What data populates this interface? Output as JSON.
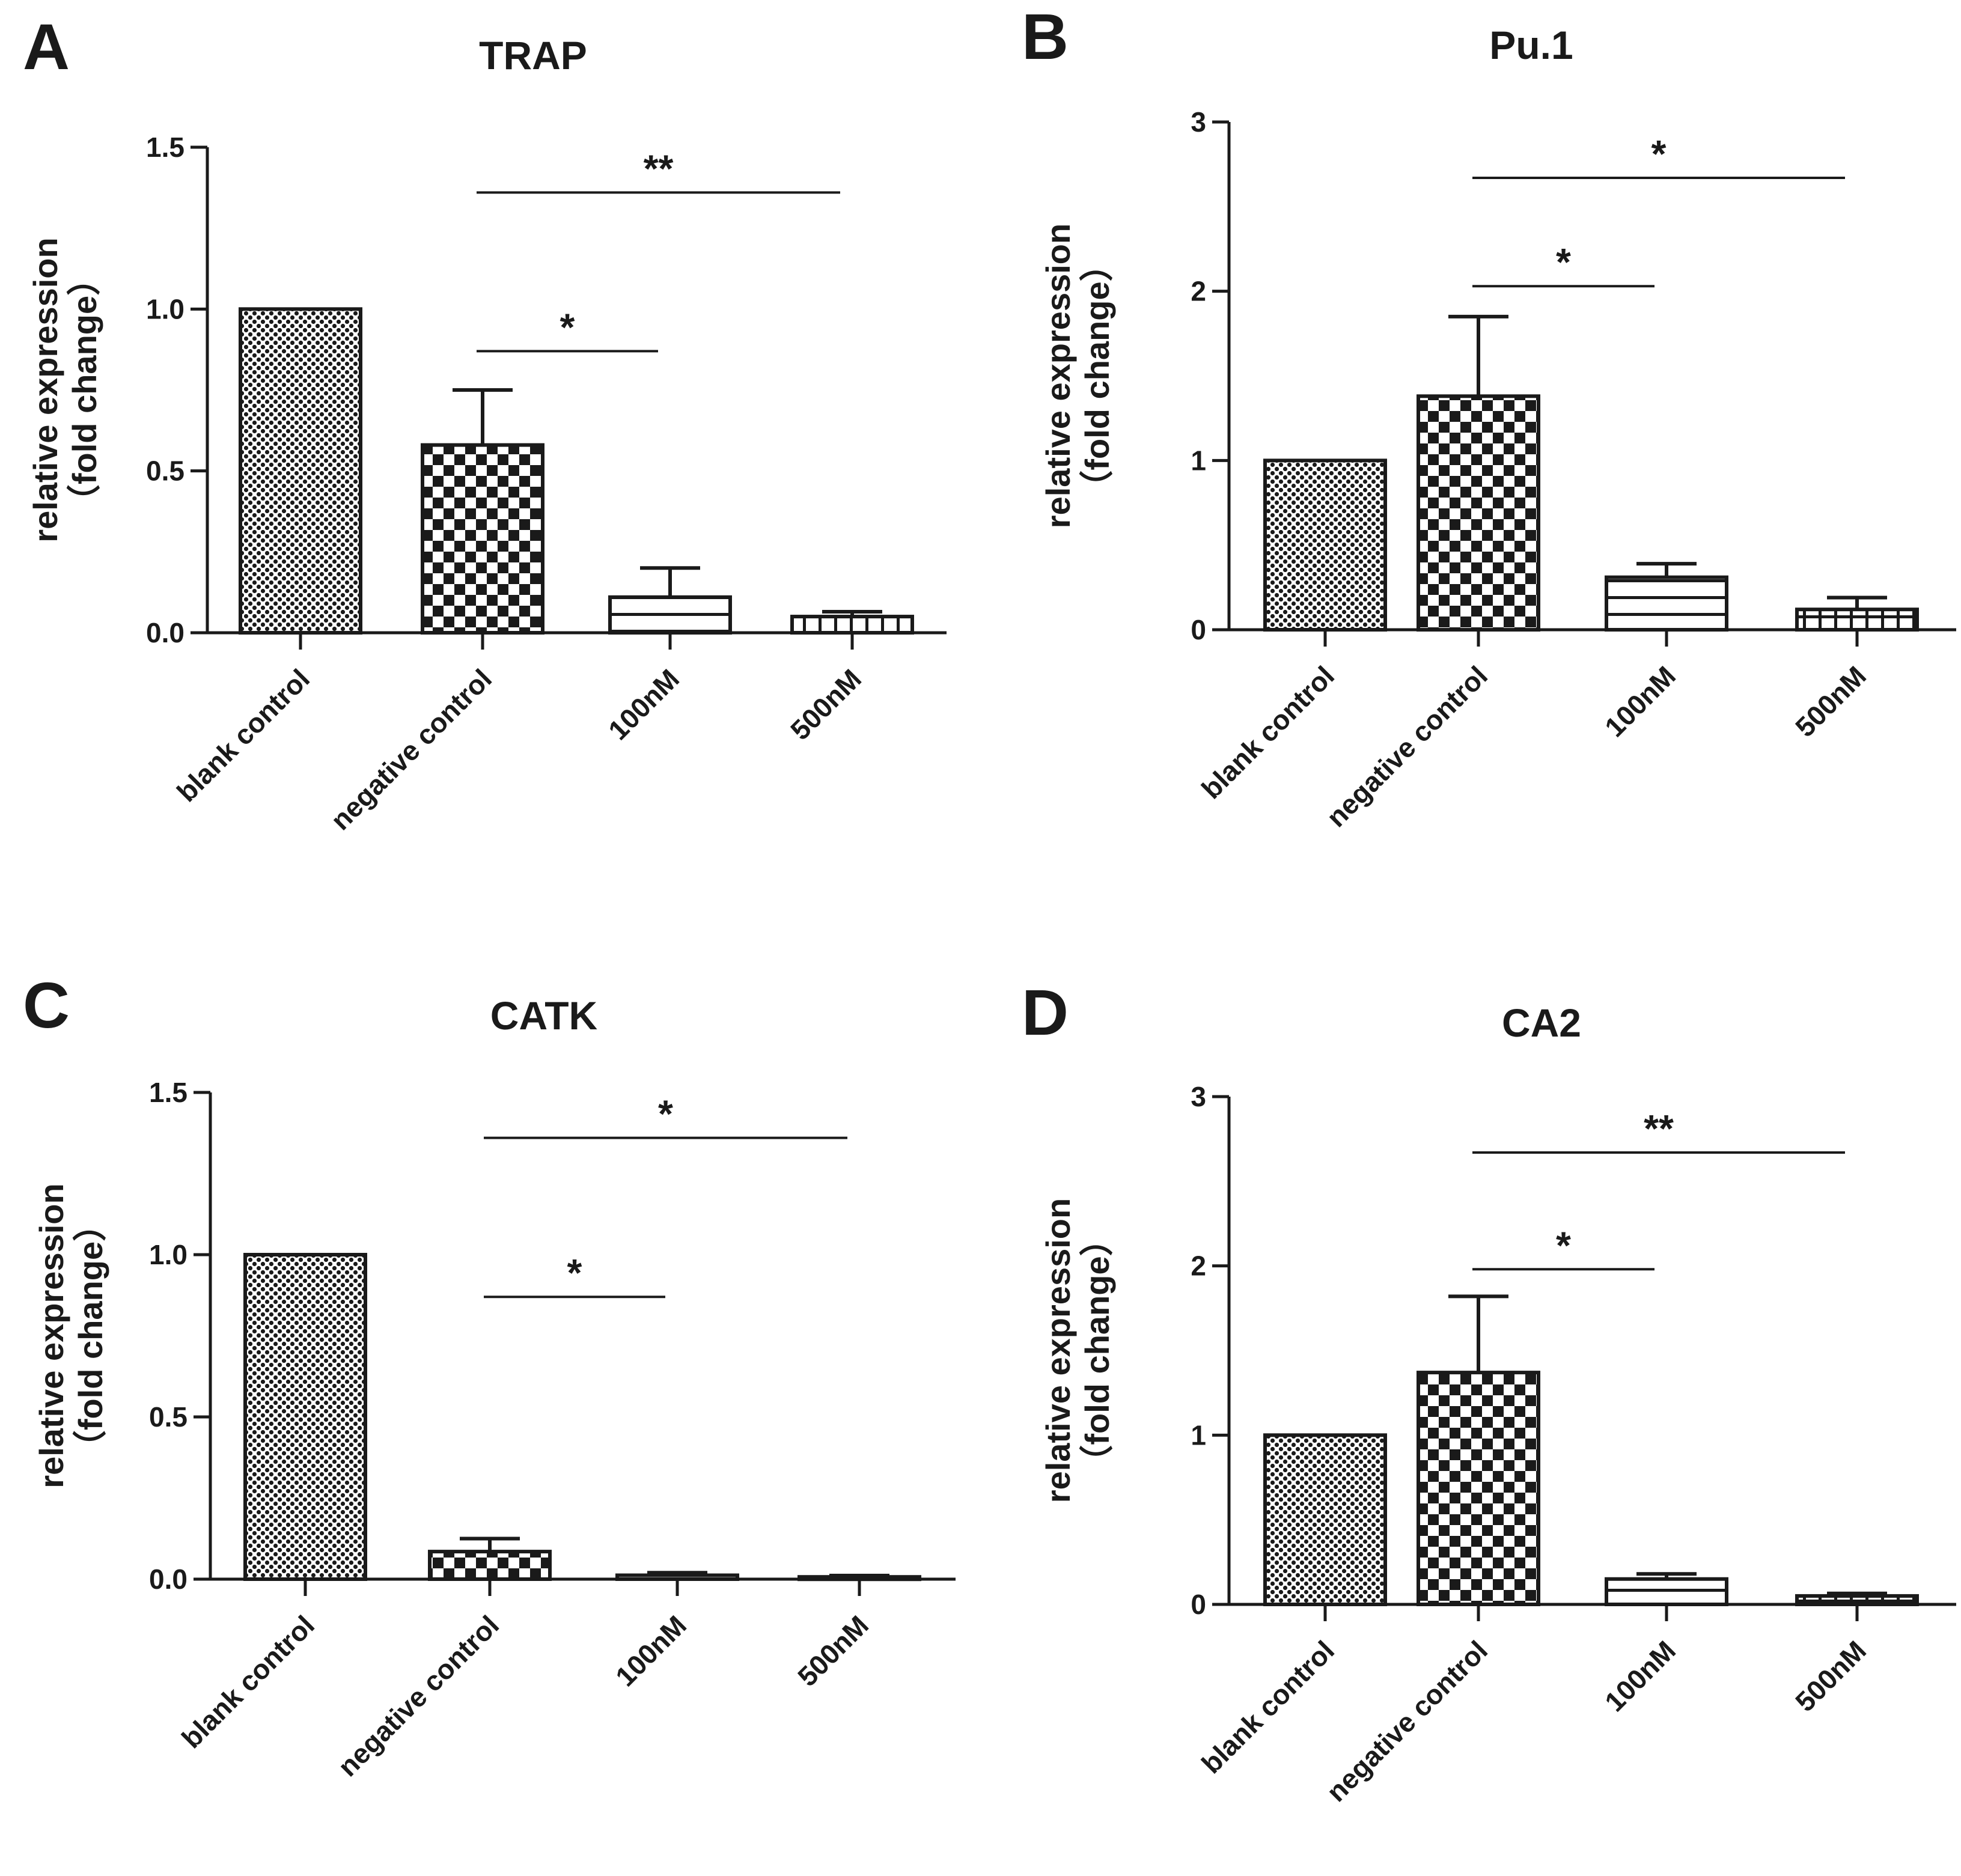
{
  "colors": {
    "ink": "#1a1a1a",
    "background": "#ffffff"
  },
  "chart_data": [
    {
      "panel_label": "A",
      "type": "bar",
      "title": "TRAP",
      "ylabel_line1": "relative expression",
      "ylabel_line2": "（fold change）",
      "categories": [
        "blank control",
        "negative control",
        "100nM",
        "500nM"
      ],
      "values": [
        1.0,
        0.58,
        0.11,
        0.05
      ],
      "errors": [
        0,
        0.17,
        0.09,
        0.015
      ],
      "patterns": [
        "dots",
        "checker",
        "hstripes",
        "hvstripes"
      ],
      "ylim": [
        0,
        1.5
      ],
      "yticks": [
        0,
        0.5,
        1.0,
        1.5
      ],
      "ytick_labels": [
        "0.0",
        "0.5",
        "1.0",
        "1.5"
      ],
      "significance": [
        {
          "from": 1,
          "to": 2,
          "y": 0.87,
          "label": "*"
        },
        {
          "from": 1,
          "to": 3,
          "y": 1.36,
          "label": "**"
        }
      ]
    },
    {
      "panel_label": "B",
      "type": "bar",
      "title": "Pu.1",
      "ylabel_line1": "relative expression",
      "ylabel_line2": "（fold change）",
      "categories": [
        "blank control",
        "negative control",
        "100nM",
        "500nM"
      ],
      "values": [
        1.0,
        1.38,
        0.31,
        0.12
      ],
      "errors": [
        0,
        0.47,
        0.08,
        0.07
      ],
      "patterns": [
        "dots",
        "checker",
        "hstripes",
        "hvstripes"
      ],
      "ylim": [
        0,
        3
      ],
      "yticks": [
        0,
        1,
        2,
        3
      ],
      "ytick_labels": [
        "0",
        "1",
        "2",
        "3"
      ],
      "significance": [
        {
          "from": 1,
          "to": 2,
          "y": 2.03,
          "label": "*"
        },
        {
          "from": 1,
          "to": 3,
          "y": 2.67,
          "label": "*"
        }
      ]
    },
    {
      "panel_label": "C",
      "type": "bar",
      "title": "CATK",
      "ylabel_line1": "relative expression",
      "ylabel_line2": "（fold change）",
      "categories": [
        "blank control",
        "negative control",
        "100nM",
        "500nM"
      ],
      "values": [
        1.0,
        0.085,
        0.012,
        0.007
      ],
      "errors": [
        0,
        0.04,
        0.008,
        0.004
      ],
      "patterns": [
        "dots",
        "checker",
        "hstripes",
        "hvstripes"
      ],
      "ylim": [
        0,
        1.5
      ],
      "yticks": [
        0,
        0.5,
        1.0,
        1.5
      ],
      "ytick_labels": [
        "0.0",
        "0.5",
        "1.0",
        "1.5"
      ],
      "significance": [
        {
          "from": 1,
          "to": 2,
          "y": 0.87,
          "label": "*"
        },
        {
          "from": 1,
          "to": 3,
          "y": 1.36,
          "label": "*"
        }
      ]
    },
    {
      "panel_label": "D",
      "type": "bar",
      "title": "CA2",
      "ylabel_line1": "relative expression",
      "ylabel_line2": "（fold change）",
      "categories": [
        "blank control",
        "negative control",
        "100nM",
        "500nM"
      ],
      "values": [
        1.0,
        1.37,
        0.15,
        0.05
      ],
      "errors": [
        0,
        0.45,
        0.03,
        0.015
      ],
      "patterns": [
        "dots",
        "checker",
        "hstripes",
        "hvstripes"
      ],
      "ylim": [
        0,
        3
      ],
      "yticks": [
        0,
        1,
        2,
        3
      ],
      "ytick_labels": [
        "0",
        "1",
        "2",
        "3"
      ],
      "significance": [
        {
          "from": 1,
          "to": 2,
          "y": 1.98,
          "label": "*"
        },
        {
          "from": 1,
          "to": 3,
          "y": 2.67,
          "label": "**"
        }
      ]
    }
  ]
}
